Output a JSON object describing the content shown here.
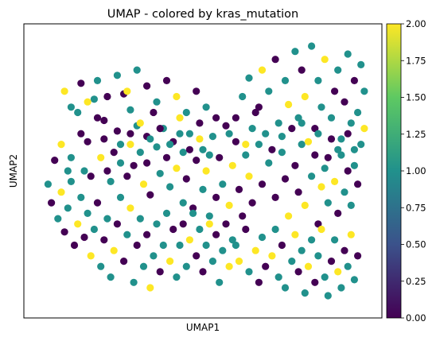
{
  "chart_data": {
    "type": "scatter",
    "title": "UMAP - colored by kras_mutation",
    "xlabel": "UMAP1",
    "ylabel": "UMAP2",
    "xlim": [
      0,
      100
    ],
    "ylim": [
      0,
      100
    ],
    "x_ticks_shown": false,
    "y_ticks_shown": false,
    "grid": false,
    "colorbar": {
      "label": "",
      "colormap": "viridis",
      "range": [
        0.0,
        2.0
      ],
      "ticks": [
        "0.00",
        "0.25",
        "0.50",
        "0.75",
        "1.00",
        "1.25",
        "1.50",
        "1.75",
        "2.00"
      ],
      "colors": [
        "#440154",
        "#3b528b",
        "#21918c",
        "#5ec962",
        "#fde725"
      ]
    },
    "category_colors": {
      "0": "#440154",
      "1": "#21918c",
      "2": "#fde725"
    },
    "points": [
      [
        5,
        54,
        0
      ],
      [
        7,
        60,
        2
      ],
      [
        9,
        50,
        1
      ],
      [
        10,
        55,
        1
      ],
      [
        12,
        72,
        1
      ],
      [
        13,
        64,
        0
      ],
      [
        14,
        50,
        1
      ],
      [
        15,
        61,
        0
      ],
      [
        16,
        48,
        0
      ],
      [
        17,
        77,
        1
      ],
      [
        18,
        70,
        0
      ],
      [
        19,
        55,
        2
      ],
      [
        20,
        69,
        0
      ],
      [
        20,
        62,
        0
      ],
      [
        21,
        50,
        0
      ],
      [
        22,
        46,
        1
      ],
      [
        23,
        57,
        0
      ],
      [
        24,
        65,
        0
      ],
      [
        25,
        53,
        1
      ],
      [
        26,
        79,
        0
      ],
      [
        27,
        48,
        0
      ],
      [
        28,
        73,
        1
      ],
      [
        28,
        60,
        2
      ],
      [
        29,
        52,
        0
      ],
      [
        30,
        67,
        1
      ],
      [
        31,
        57,
        1
      ],
      [
        32,
        45,
        2
      ],
      [
        33,
        63,
        0
      ],
      [
        33,
        53,
        0
      ],
      [
        34,
        41,
        0
      ],
      [
        35,
        72,
        0
      ],
      [
        36,
        59,
        1
      ],
      [
        37,
        49,
        1
      ],
      [
        38,
        66,
        1
      ],
      [
        39,
        55,
        0
      ],
      [
        40,
        44,
        1
      ],
      [
        41,
        61,
        0
      ],
      [
        42,
        51,
        2
      ],
      [
        43,
        70,
        2
      ],
      [
        44,
        38,
        1
      ],
      [
        44,
        57,
        1
      ],
      [
        45,
        47,
        0
      ],
      [
        46,
        64,
        1
      ],
      [
        47,
        36,
        0
      ],
      [
        48,
        54,
        0
      ],
      [
        49,
        68,
        0
      ],
      [
        50,
        43,
        1
      ],
      [
        50,
        58,
        1
      ],
      [
        51,
        50,
        2
      ],
      [
        52,
        33,
        1
      ],
      [
        53,
        63,
        1
      ],
      [
        54,
        40,
        0
      ],
      [
        55,
        55,
        0
      ],
      [
        56,
        45,
        1
      ],
      [
        57,
        67,
        0
      ],
      [
        58,
        37,
        2
      ],
      [
        59,
        52,
        2
      ],
      [
        60,
        61,
        0
      ],
      [
        61,
        43,
        0
      ],
      [
        62,
        33,
        0
      ],
      [
        63,
        56,
        1
      ],
      [
        64,
        48,
        2
      ],
      [
        65,
        38,
        0
      ],
      [
        67,
        60,
        1
      ],
      [
        68,
        45,
        0
      ],
      [
        70,
        53,
        1
      ],
      [
        72,
        40,
        0
      ],
      [
        74,
        57,
        1
      ],
      [
        75,
        47,
        0
      ],
      [
        76,
        33,
        2
      ],
      [
        78,
        52,
        0
      ],
      [
        79,
        42,
        0
      ],
      [
        80,
        60,
        1
      ],
      [
        81,
        37,
        2
      ],
      [
        83,
        48,
        1
      ],
      [
        84,
        56,
        0
      ],
      [
        85,
        30,
        0
      ],
      [
        86,
        44,
        2
      ],
      [
        87,
        51,
        1
      ],
      [
        88,
        38,
        1
      ],
      [
        89,
        62,
        0
      ],
      [
        90,
        46,
        2
      ],
      [
        91,
        34,
        0
      ],
      [
        92,
        56,
        1
      ],
      [
        93,
        42,
        1
      ],
      [
        94,
        50,
        0
      ],
      [
        95,
        37,
        1
      ],
      [
        96,
        58,
        1
      ],
      [
        97,
        45,
        0
      ],
      [
        62,
        78,
        1
      ],
      [
        64,
        85,
        1
      ],
      [
        66,
        72,
        0
      ],
      [
        68,
        88,
        2
      ],
      [
        70,
        80,
        1
      ],
      [
        72,
        92,
        0
      ],
      [
        73,
        68,
        1
      ],
      [
        75,
        84,
        1
      ],
      [
        76,
        75,
        2
      ],
      [
        78,
        95,
        1
      ],
      [
        79,
        70,
        1
      ],
      [
        80,
        88,
        0
      ],
      [
        81,
        78,
        2
      ],
      [
        83,
        97,
        1
      ],
      [
        84,
        66,
        0
      ],
      [
        85,
        84,
        1
      ],
      [
        86,
        74,
        1
      ],
      [
        87,
        92,
        2
      ],
      [
        89,
        70,
        1
      ],
      [
        90,
        80,
        0
      ],
      [
        91,
        88,
        1
      ],
      [
        92,
        62,
        1
      ],
      [
        93,
        76,
        0
      ],
      [
        94,
        94,
        1
      ],
      [
        95,
        68,
        1
      ],
      [
        96,
        84,
        0
      ],
      [
        97,
        72,
        1
      ],
      [
        98,
        90,
        1
      ],
      [
        99,
        66,
        2
      ],
      [
        99,
        80,
        1
      ],
      [
        58,
        64,
        1
      ],
      [
        60,
        70,
        0
      ],
      [
        63,
        60,
        2
      ],
      [
        65,
        66,
        1
      ],
      [
        67,
        74,
        0
      ],
      [
        69,
        64,
        1
      ],
      [
        71,
        58,
        0
      ],
      [
        74,
        63,
        1
      ],
      [
        77,
        66,
        0
      ],
      [
        80,
        68,
        1
      ],
      [
        82,
        61,
        2
      ],
      [
        85,
        64,
        1
      ],
      [
        88,
        55,
        0
      ],
      [
        91,
        58,
        1
      ],
      [
        94,
        64,
        0
      ],
      [
        96,
        52,
        1
      ],
      [
        98,
        60,
        1
      ],
      [
        60,
        22,
        1
      ],
      [
        61,
        16,
        2
      ],
      [
        63,
        28,
        0
      ],
      [
        64,
        12,
        1
      ],
      [
        66,
        20,
        2
      ],
      [
        67,
        8,
        0
      ],
      [
        68,
        25,
        1
      ],
      [
        69,
        14,
        0
      ],
      [
        71,
        18,
        2
      ],
      [
        72,
        28,
        1
      ],
      [
        73,
        10,
        1
      ],
      [
        74,
        22,
        0
      ],
      [
        75,
        6,
        1
      ],
      [
        77,
        16,
        1
      ],
      [
        78,
        26,
        2
      ],
      [
        79,
        12,
        0
      ],
      [
        80,
        20,
        1
      ],
      [
        81,
        4,
        1
      ],
      [
        82,
        14,
        2
      ],
      [
        83,
        24,
        1
      ],
      [
        84,
        8,
        0
      ],
      [
        85,
        18,
        1
      ],
      [
        86,
        28,
        2
      ],
      [
        87,
        10,
        1
      ],
      [
        88,
        3,
        1
      ],
      [
        89,
        16,
        0
      ],
      [
        90,
        24,
        1
      ],
      [
        91,
        12,
        2
      ],
      [
        92,
        6,
        1
      ],
      [
        93,
        20,
        0
      ],
      [
        94,
        14,
        1
      ],
      [
        95,
        26,
        2
      ],
      [
        96,
        9,
        1
      ],
      [
        97,
        18,
        0
      ],
      [
        3,
        45,
        1
      ],
      [
        4,
        38,
        0
      ],
      [
        6,
        32,
        1
      ],
      [
        7,
        42,
        2
      ],
      [
        8,
        27,
        0
      ],
      [
        9,
        36,
        1
      ],
      [
        10,
        46,
        1
      ],
      [
        11,
        22,
        0
      ],
      [
        12,
        30,
        2
      ],
      [
        13,
        40,
        1
      ],
      [
        14,
        25,
        0
      ],
      [
        15,
        34,
        1
      ],
      [
        16,
        18,
        2
      ],
      [
        17,
        28,
        1
      ],
      [
        18,
        38,
        0
      ],
      [
        19,
        14,
        1
      ],
      [
        20,
        24,
        0
      ],
      [
        21,
        32,
        1
      ],
      [
        22,
        10,
        1
      ],
      [
        23,
        20,
        2
      ],
      [
        24,
        30,
        0
      ],
      [
        25,
        40,
        1
      ],
      [
        26,
        16,
        0
      ],
      [
        27,
        26,
        1
      ],
      [
        28,
        36,
        2
      ],
      [
        29,
        8,
        1
      ],
      [
        30,
        22,
        0
      ],
      [
        31,
        32,
        1
      ],
      [
        32,
        14,
        1
      ],
      [
        33,
        26,
        0
      ],
      [
        34,
        6,
        2
      ],
      [
        35,
        18,
        1
      ],
      [
        36,
        30,
        1
      ],
      [
        37,
        12,
        0
      ],
      [
        38,
        22,
        1
      ],
      [
        39,
        34,
        1
      ],
      [
        40,
        16,
        2
      ],
      [
        41,
        28,
        0
      ],
      [
        42,
        10,
        1
      ],
      [
        43,
        22,
        1
      ],
      [
        44,
        30,
        0
      ],
      [
        45,
        14,
        1
      ],
      [
        46,
        24,
        2
      ],
      [
        47,
        34,
        1
      ],
      [
        48,
        18,
        0
      ],
      [
        49,
        28,
        1
      ],
      [
        50,
        12,
        0
      ],
      [
        51,
        22,
        1
      ],
      [
        52,
        30,
        2
      ],
      [
        53,
        16,
        1
      ],
      [
        54,
        26,
        0
      ],
      [
        55,
        8,
        1
      ],
      [
        56,
        20,
        1
      ],
      [
        57,
        30,
        0
      ],
      [
        58,
        14,
        2
      ],
      [
        59,
        24,
        1
      ],
      [
        8,
        80,
        2
      ],
      [
        10,
        74,
        1
      ],
      [
        13,
        83,
        0
      ],
      [
        15,
        76,
        2
      ],
      [
        18,
        84,
        1
      ],
      [
        21,
        78,
        0
      ],
      [
        24,
        86,
        1
      ],
      [
        27,
        80,
        2
      ],
      [
        30,
        88,
        1
      ],
      [
        33,
        82,
        0
      ],
      [
        36,
        76,
        1
      ],
      [
        39,
        84,
        0
      ],
      [
        42,
        78,
        2
      ],
      [
        45,
        72,
        1
      ],
      [
        48,
        80,
        0
      ],
      [
        51,
        74,
        1
      ],
      [
        54,
        70,
        0
      ],
      [
        25,
        60,
        1
      ],
      [
        28,
        64,
        0
      ],
      [
        31,
        68,
        2
      ],
      [
        34,
        62,
        1
      ],
      [
        37,
        66,
        0
      ],
      [
        40,
        60,
        1
      ],
      [
        43,
        64,
        1
      ],
      [
        46,
        58,
        0
      ],
      [
        49,
        62,
        2
      ],
      [
        52,
        56,
        1
      ]
    ]
  }
}
